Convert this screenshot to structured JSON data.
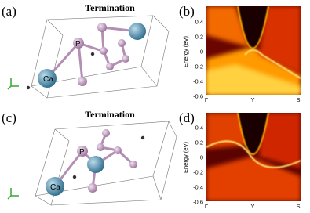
{
  "panels": [
    {
      "label": "(a)",
      "title": "Termination",
      "atoms": [
        "P",
        "Ca"
      ]
    },
    {
      "label": "(b)",
      "y_axis": "Energy (eV)",
      "yticks": [
        0.4,
        0.2,
        0,
        -0.2,
        -0.4,
        -0.6
      ],
      "x_labels": [
        "Γ",
        "Y",
        "S"
      ]
    },
    {
      "label": "(c)",
      "title": "Termination",
      "atoms": [
        "P",
        "Ca"
      ]
    },
    {
      "label": "(d)",
      "y_axis": "Energy (eV)",
      "yticks": [
        0.4,
        0.2,
        0,
        -0.2,
        -0.4,
        -0.6
      ],
      "x_labels": [
        "Γ",
        "Y",
        "S"
      ]
    }
  ]
}
